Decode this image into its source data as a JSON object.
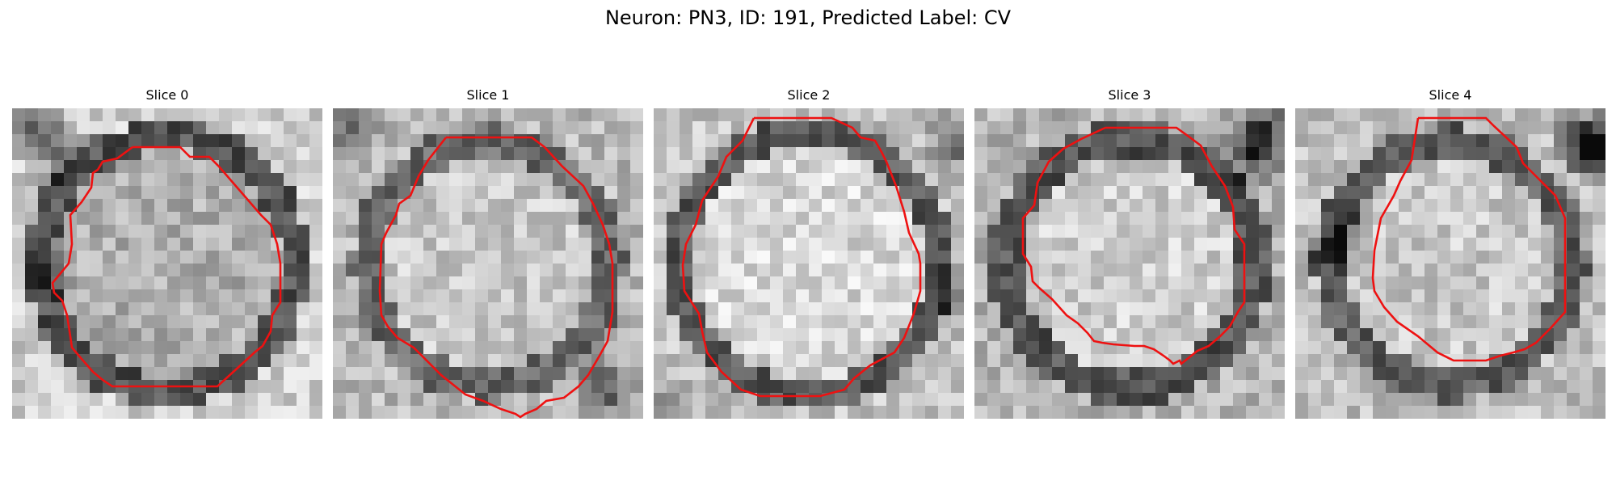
{
  "figure": {
    "title": "Neuron: PN3, ID: 191, Predicted Label: CV"
  },
  "panels": [
    {
      "title": "Slice 0"
    },
    {
      "title": "Slice 1"
    },
    {
      "title": "Slice 2"
    },
    {
      "title": "Slice 3"
    },
    {
      "title": "Slice 4"
    }
  ],
  "colors": {
    "contour": "#ee1111",
    "background": "#ffffff"
  }
}
